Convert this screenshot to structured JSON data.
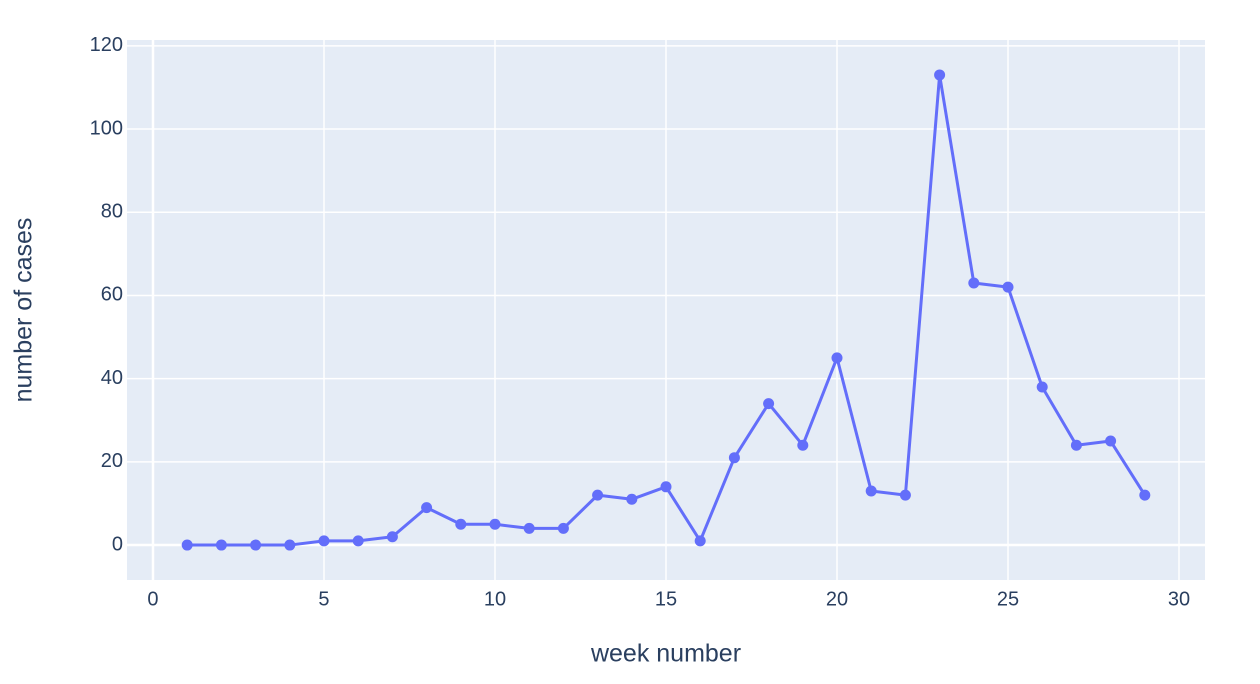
{
  "chart_data": {
    "type": "line",
    "x_label": "week number",
    "y_label": "number of cases",
    "x": [
      1,
      2,
      3,
      4,
      5,
      6,
      7,
      8,
      9,
      10,
      11,
      12,
      13,
      14,
      15,
      16,
      17,
      18,
      19,
      20,
      21,
      22,
      23,
      24,
      25,
      26,
      27,
      28,
      29
    ],
    "series": [
      {
        "color": "#636efa",
        "values": [
          0,
          0,
          0,
          0,
          1,
          1,
          2,
          9,
          5,
          5,
          4,
          4,
          12,
          11,
          14,
          1,
          21,
          34,
          24,
          45,
          13,
          12,
          113,
          63,
          62,
          38,
          24,
          25,
          12
        ]
      }
    ],
    "xlim": [
      -0.76,
      30.76
    ],
    "ylim": [
      -8.4,
      121.4
    ],
    "xticks": [
      0,
      5,
      10,
      15,
      20,
      25,
      30
    ],
    "yticks": [
      0,
      20,
      40,
      60,
      80,
      100,
      120
    ],
    "grid": true,
    "markers": true
  }
}
